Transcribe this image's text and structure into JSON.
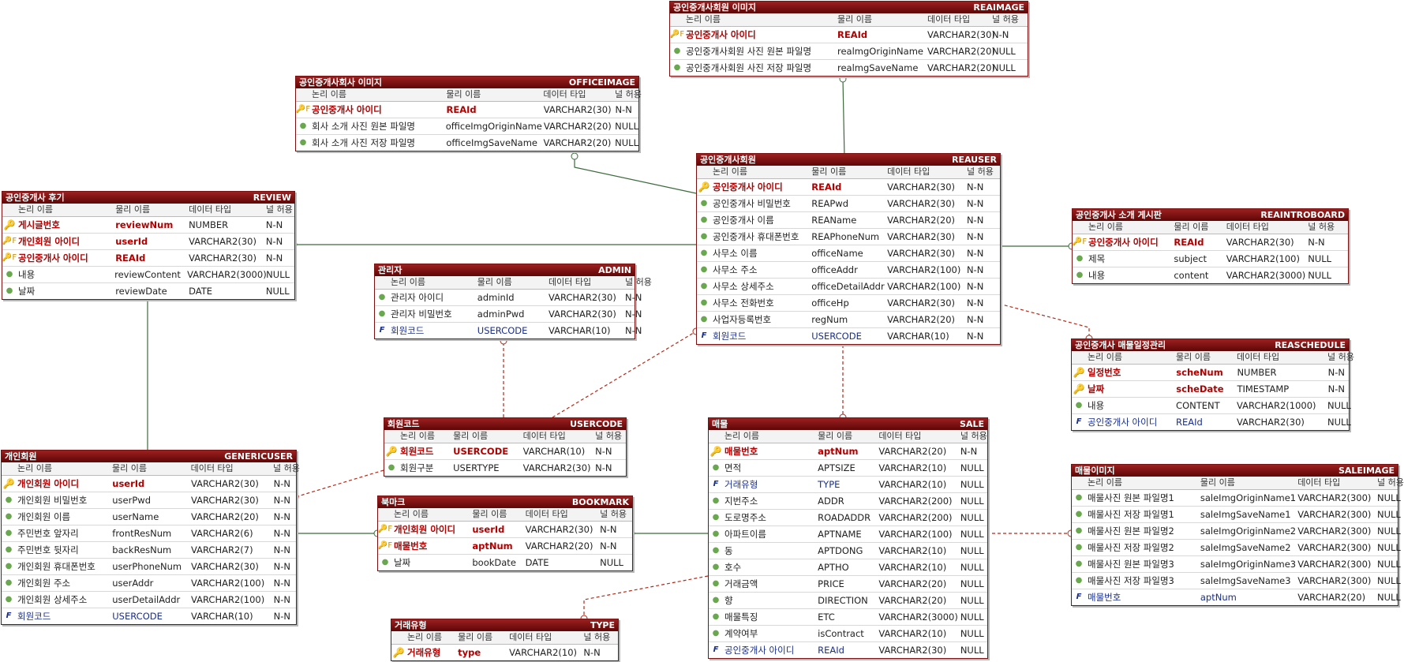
{
  "header_labels": {
    "logical": "논리 이름",
    "physical": "물리 이름",
    "type": "데이터 타입",
    "null": "널 허용"
  },
  "colors": {
    "header": "#7a0a0a",
    "relation_identifying": "#3c6b3c",
    "relation_nonidentifying": "#b02a1a",
    "pk_text": "#b00000",
    "fk_text": "#1a2f8a"
  },
  "entities": [
    {
      "id": "REAIMAGE",
      "logical_name": "공인중개사회원 이미지",
      "physical_name": "REAIMAGE",
      "columns": [
        {
          "key": "pkfk",
          "logical": "공인중개사 아이디",
          "physical": "REAId",
          "type": "VARCHAR2(30)",
          "null": "N-N"
        },
        {
          "key": "attr",
          "logical": "공인중개사회원 사진 원본 파일명",
          "physical": "realmgOriginName",
          "type": "VARCHAR2(20)",
          "null": "NULL"
        },
        {
          "key": "attr",
          "logical": "공인중개사회원 사진 저장 파일명",
          "physical": "realmgSaveName",
          "type": "VARCHAR2(20)",
          "null": "NULL"
        }
      ]
    },
    {
      "id": "OFFICEIMAGE",
      "logical_name": "공인중개사회사 이미지",
      "physical_name": "OFFICEIMAGE",
      "columns": [
        {
          "key": "pkfk",
          "logical": "공인중개사 아이디",
          "physical": "REAId",
          "type": "VARCHAR2(30)",
          "null": "N-N"
        },
        {
          "key": "attr",
          "logical": "회사 소개 사진 원본 파일명",
          "physical": "officeImgOriginName",
          "type": "VARCHAR2(20)",
          "null": "NULL"
        },
        {
          "key": "attr",
          "logical": "회사 소개 사진 저장 파일명",
          "physical": "officeImgSaveName",
          "type": "VARCHAR2(20)",
          "null": "NULL"
        }
      ]
    },
    {
      "id": "REVIEW",
      "logical_name": "공인중개사 후기",
      "physical_name": "REVIEW",
      "columns": [
        {
          "key": "pk",
          "logical": "게시글번호",
          "physical": "reviewNum",
          "type": "NUMBER",
          "null": "N-N"
        },
        {
          "key": "pkfk",
          "logical": "개인회원 아이디",
          "physical": "userId",
          "type": "VARCHAR2(30)",
          "null": "N-N"
        },
        {
          "key": "pkfk",
          "logical": "공인중개사 아이디",
          "physical": "REAId",
          "type": "VARCHAR2(30)",
          "null": "N-N"
        },
        {
          "key": "attr",
          "logical": "내용",
          "physical": "reviewContent",
          "type": "VARCHAR2(3000)",
          "null": "NULL"
        },
        {
          "key": "attr",
          "logical": "날짜",
          "physical": "reviewDate",
          "type": "DATE",
          "null": "NULL"
        }
      ]
    },
    {
      "id": "ADMIN",
      "logical_name": "관리자",
      "physical_name": "ADMIN",
      "columns": [
        {
          "key": "attr",
          "logical": "관리자 아이디",
          "physical": "adminId",
          "type": "VARCHAR2(30)",
          "null": "N-N"
        },
        {
          "key": "attr",
          "logical": "관리자 비밀번호",
          "physical": "adminPwd",
          "type": "VARCHAR2(30)",
          "null": "N-N"
        },
        {
          "key": "fk",
          "logical": "회원코드",
          "physical": "USERCODE",
          "type": "VARCHAR(10)",
          "null": "N-N"
        }
      ]
    },
    {
      "id": "REAUSER",
      "logical_name": "공인중개사회원",
      "physical_name": "REAUSER",
      "columns": [
        {
          "key": "pk",
          "logical": "공인중개사 아이디",
          "physical": "REAId",
          "type": "VARCHAR2(30)",
          "null": "N-N"
        },
        {
          "key": "attr",
          "logical": "공인중개사 비밀번호",
          "physical": "REAPwd",
          "type": "VARCHAR2(30)",
          "null": "N-N"
        },
        {
          "key": "attr",
          "logical": "공인중개사 이름",
          "physical": "REAName",
          "type": "VARCHAR2(20)",
          "null": "N-N"
        },
        {
          "key": "attr",
          "logical": "공인중개사 휴대폰번호",
          "physical": "REAPhoneNum",
          "type": "VARCHAR2(30)",
          "null": "N-N"
        },
        {
          "key": "attr",
          "logical": "사무소 이름",
          "physical": "officeName",
          "type": "VARCHAR2(30)",
          "null": "N-N"
        },
        {
          "key": "attr",
          "logical": "사무소 주소",
          "physical": "officeAddr",
          "type": "VARCHAR2(100)",
          "null": "N-N"
        },
        {
          "key": "attr",
          "logical": "사무소 상세주소",
          "physical": "officeDetailAddr",
          "type": "VARCHAR2(100)",
          "null": "N-N"
        },
        {
          "key": "attr",
          "logical": "사무소 전화번호",
          "physical": "officeHp",
          "type": "VARCHAR2(30)",
          "null": "N-N"
        },
        {
          "key": "attr",
          "logical": "사업자등록번호",
          "physical": "regNum",
          "type": "VARCHAR2(20)",
          "null": "N-N"
        },
        {
          "key": "fk",
          "logical": "회원코드",
          "physical": "USERCODE",
          "type": "VARCHAR(10)",
          "null": "N-N"
        }
      ]
    },
    {
      "id": "REAINTROBOARD",
      "logical_name": "공인중개사 소개 게시판",
      "physical_name": "REAINTROBOARD",
      "columns": [
        {
          "key": "pkfk",
          "logical": "공인중개사 아이디",
          "physical": "REAId",
          "type": "VARCHAR2(30)",
          "null": "N-N"
        },
        {
          "key": "attr",
          "logical": "제목",
          "physical": "subject",
          "type": "VARCHAR2(100)",
          "null": "NULL"
        },
        {
          "key": "attr",
          "logical": "내용",
          "physical": "content",
          "type": "VARCHAR2(3000)",
          "null": "NULL"
        }
      ]
    },
    {
      "id": "REASCHEDULE",
      "logical_name": "공인중개사 매물일정관리",
      "physical_name": "REASCHEDULE",
      "columns": [
        {
          "key": "pk",
          "logical": "일정번호",
          "physical": "scheNum",
          "type": "NUMBER",
          "null": "N-N"
        },
        {
          "key": "pk",
          "logical": "날짜",
          "physical": "scheDate",
          "type": "TIMESTAMP",
          "null": "N-N"
        },
        {
          "key": "attr",
          "logical": "내용",
          "physical": "CONTENT",
          "type": "VARCHAR2(1000)",
          "null": "NULL"
        },
        {
          "key": "fk",
          "logical": "공인중개사 아이디",
          "physical": "REAId",
          "type": "VARCHAR2(30)",
          "null": "NULL"
        }
      ]
    },
    {
      "id": "USERCODE",
      "logical_name": "회원코드",
      "physical_name": "USERCODE",
      "columns": [
        {
          "key": "pk",
          "logical": "회원코드",
          "physical": "USERCODE",
          "type": "VARCHAR(10)",
          "null": "N-N"
        },
        {
          "key": "attr",
          "logical": "회원구분",
          "physical": "USERTYPE",
          "type": "VARCHAR2(30)",
          "null": "N-N"
        }
      ]
    },
    {
      "id": "GENERICUSER",
      "logical_name": "개인회원",
      "physical_name": "GENERICUSER",
      "columns": [
        {
          "key": "pk",
          "logical": "개인회원 아이디",
          "physical": "userId",
          "type": "VARCHAR2(30)",
          "null": "N-N"
        },
        {
          "key": "attr",
          "logical": "개인회원 비밀번호",
          "physical": "userPwd",
          "type": "VARCHAR2(30)",
          "null": "N-N"
        },
        {
          "key": "attr",
          "logical": "개인회원 이름",
          "physical": "userName",
          "type": "VARCHAR2(20)",
          "null": "N-N"
        },
        {
          "key": "attr",
          "logical": "주민번호 앞자리",
          "physical": "frontResNum",
          "type": "VARCHAR2(6)",
          "null": "N-N"
        },
        {
          "key": "attr",
          "logical": "주민번호 뒷자리",
          "physical": "backResNum",
          "type": "VARCHAR2(7)",
          "null": "N-N"
        },
        {
          "key": "attr",
          "logical": "개인회원 휴대폰번호",
          "physical": "userPhoneNum",
          "type": "VARCHAR2(30)",
          "null": "N-N"
        },
        {
          "key": "attr",
          "logical": "개인회원 주소",
          "physical": "userAddr",
          "type": "VARCHAR2(100)",
          "null": "N-N"
        },
        {
          "key": "attr",
          "logical": "개인회원 상세주소",
          "physical": "userDetailAddr",
          "type": "VARCHAR2(100)",
          "null": "N-N"
        },
        {
          "key": "fk",
          "logical": "회원코드",
          "physical": "USERCODE",
          "type": "VARCHAR(10)",
          "null": "N-N"
        }
      ]
    },
    {
      "id": "BOOKMARK",
      "logical_name": "북마크",
      "physical_name": "BOOKMARK",
      "columns": [
        {
          "key": "pkfk",
          "logical": "개인회원 아이디",
          "physical": "userId",
          "type": "VARCHAR2(30)",
          "null": "N-N"
        },
        {
          "key": "pkfk",
          "logical": "매물번호",
          "physical": "aptNum",
          "type": "VARCHAR2(20)",
          "null": "N-N"
        },
        {
          "key": "attr",
          "logical": "날짜",
          "physical": "bookDate",
          "type": "DATE",
          "null": "NULL"
        }
      ]
    },
    {
      "id": "SALE",
      "logical_name": "매물",
      "physical_name": "SALE",
      "columns": [
        {
          "key": "pk",
          "logical": "매물번호",
          "physical": "aptNum",
          "type": "VARCHAR2(20)",
          "null": "N-N"
        },
        {
          "key": "attr",
          "logical": "면적",
          "physical": "APTSIZE",
          "type": "VARCHAR2(10)",
          "null": "NULL"
        },
        {
          "key": "fk",
          "logical": "거래유형",
          "physical": "TYPE",
          "type": "VARCHAR2(10)",
          "null": "NULL"
        },
        {
          "key": "attr",
          "logical": "지번주소",
          "physical": "ADDR",
          "type": "VARCHAR2(200)",
          "null": "NULL"
        },
        {
          "key": "attr",
          "logical": "도로명주소",
          "physical": "ROADADDR",
          "type": "VARCHAR2(200)",
          "null": "NULL"
        },
        {
          "key": "attr",
          "logical": "아파트이름",
          "physical": "APTNAME",
          "type": "VARCHAR2(100)",
          "null": "NULL"
        },
        {
          "key": "attr",
          "logical": "동",
          "physical": "APTDONG",
          "type": "VARCHAR2(10)",
          "null": "NULL"
        },
        {
          "key": "attr",
          "logical": "호수",
          "physical": "APTHO",
          "type": "VARCHAR2(10)",
          "null": "NULL"
        },
        {
          "key": "attr",
          "logical": "거래금액",
          "physical": "PRICE",
          "type": "VARCHAR2(20)",
          "null": "NULL"
        },
        {
          "key": "attr",
          "logical": "향",
          "physical": "DIRECTION",
          "type": "VARCHAR2(20)",
          "null": "NULL"
        },
        {
          "key": "attr",
          "logical": "매물특징",
          "physical": "ETC",
          "type": "VARCHAR2(3000)",
          "null": "NULL"
        },
        {
          "key": "attr",
          "logical": "계약여부",
          "physical": "isContract",
          "type": "VARCHAR2(10)",
          "null": "NULL"
        },
        {
          "key": "fk",
          "logical": "공인중개사 아이디",
          "physical": "REAId",
          "type": "VARCHAR2(30)",
          "null": "NULL"
        }
      ]
    },
    {
      "id": "SALEIMAGE",
      "logical_name": "매물이미지",
      "physical_name": "SALEIMAGE",
      "columns": [
        {
          "key": "attr",
          "logical": "매물사진 원본 파일명1",
          "physical": "saleImgOriginName1",
          "type": "VARCHAR2(300)",
          "null": "NULL"
        },
        {
          "key": "attr",
          "logical": "매물사진 저장 파일명1",
          "physical": "saleImgSaveName1",
          "type": "VARCHAR2(300)",
          "null": "NULL"
        },
        {
          "key": "attr",
          "logical": "매물사진 원본 파일명2",
          "physical": "saleImgOriginName2",
          "type": "VARCHAR2(300)",
          "null": "NULL"
        },
        {
          "key": "attr",
          "logical": "매물사진 저장 파일명2",
          "physical": "saleImgSaveName2",
          "type": "VARCHAR2(300)",
          "null": "NULL"
        },
        {
          "key": "attr",
          "logical": "매물사진 원본 파일명3",
          "physical": "saleImgOriginName3",
          "type": "VARCHAR2(300)",
          "null": "NULL"
        },
        {
          "key": "attr",
          "logical": "매물사진 저장 파일명3",
          "physical": "saleImgSaveName3",
          "type": "VARCHAR2(300)",
          "null": "NULL"
        },
        {
          "key": "fk",
          "logical": "매물번호",
          "physical": "aptNum",
          "type": "VARCHAR2(20)",
          "null": "NULL"
        }
      ]
    },
    {
      "id": "TYPE",
      "logical_name": "거래유형",
      "physical_name": "TYPE",
      "columns": [
        {
          "key": "pk",
          "logical": "거래유형",
          "physical": "type",
          "type": "VARCHAR2(10)",
          "null": "N-N"
        }
      ]
    }
  ],
  "relationships": [
    {
      "from": "REAUSER",
      "to": "REAIMAGE",
      "kind": "identifying"
    },
    {
      "from": "REAUSER",
      "to": "OFFICEIMAGE",
      "kind": "identifying"
    },
    {
      "from": "REAUSER",
      "to": "REVIEW",
      "kind": "identifying"
    },
    {
      "from": "REAUSER",
      "to": "REAINTROBOARD",
      "kind": "identifying"
    },
    {
      "from": "REAUSER",
      "to": "REASCHEDULE",
      "kind": "non-identifying"
    },
    {
      "from": "REAUSER",
      "to": "SALE",
      "kind": "non-identifying"
    },
    {
      "from": "USERCODE",
      "to": "REAUSER",
      "kind": "non-identifying"
    },
    {
      "from": "USERCODE",
      "to": "ADMIN",
      "kind": "non-identifying"
    },
    {
      "from": "USERCODE",
      "to": "GENERICUSER",
      "kind": "non-identifying"
    },
    {
      "from": "GENERICUSER",
      "to": "REVIEW",
      "kind": "identifying"
    },
    {
      "from": "GENERICUSER",
      "to": "BOOKMARK",
      "kind": "identifying"
    },
    {
      "from": "SALE",
      "to": "BOOKMARK",
      "kind": "identifying"
    },
    {
      "from": "SALE",
      "to": "SALEIMAGE",
      "kind": "non-identifying"
    },
    {
      "from": "TYPE",
      "to": "SALE",
      "kind": "non-identifying"
    }
  ]
}
